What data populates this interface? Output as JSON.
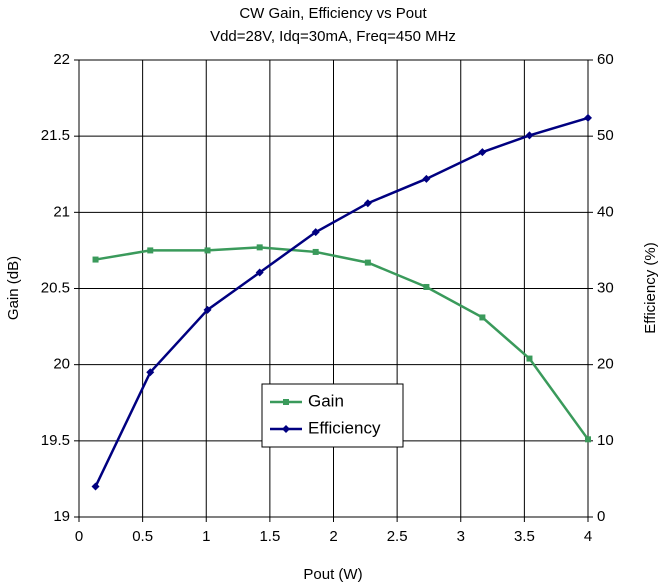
{
  "chart_data": {
    "type": "line",
    "title": "CW Gain, Efficiency vs Pout",
    "subtitle": "Vdd=28V, Idq=30mA, Freq=450 MHz",
    "xlabel": "Pout (W)",
    "ylabel": "Gain (dB)",
    "y2label": "Efficiency (%)",
    "x": [
      0.13,
      0.56,
      1.01,
      1.42,
      1.86,
      2.27,
      2.73,
      3.17,
      3.54,
      4.0
    ],
    "series": [
      {
        "name": "Gain",
        "color": "#3a9a5b",
        "axis": "y",
        "marker": "square",
        "values": [
          20.69,
          20.75,
          20.75,
          20.77,
          20.74,
          20.67,
          20.51,
          20.31,
          20.04,
          19.51
        ]
      },
      {
        "name": "Efficiency",
        "color": "#000080",
        "axis": "y2",
        "marker": "diamond",
        "values": [
          4,
          19,
          27.2,
          32.1,
          37.4,
          41.2,
          44.4,
          47.9,
          50.1,
          52.4
        ]
      }
    ],
    "xlim": [
      0,
      4
    ],
    "xticks": [
      0,
      0.5,
      1,
      1.5,
      2,
      2.5,
      3,
      3.5,
      4
    ],
    "ylim": [
      19,
      22
    ],
    "yticks": [
      19,
      19.5,
      20,
      20.5,
      21,
      21.5,
      22
    ],
    "y2lim": [
      0,
      60
    ],
    "y2ticks": [
      0,
      10,
      20,
      30,
      40,
      50,
      60
    ],
    "grid": true,
    "legend": "center"
  }
}
